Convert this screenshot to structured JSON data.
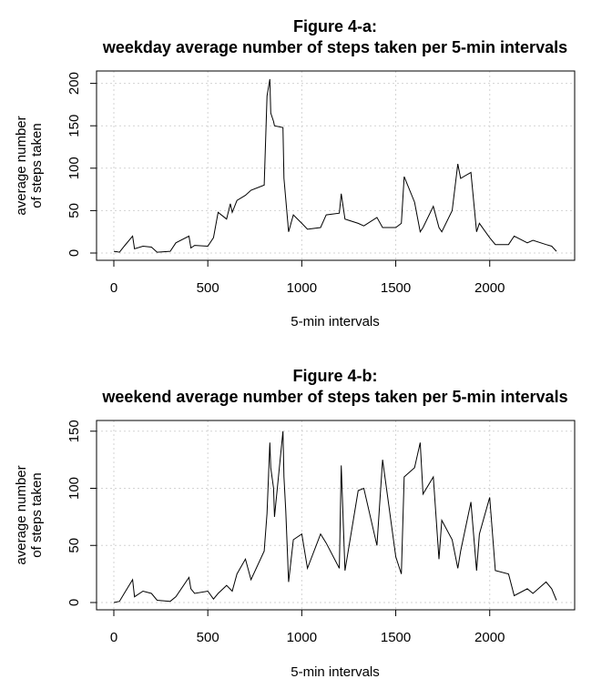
{
  "chart_data": [
    {
      "type": "line",
      "title": "Figure 4-a:",
      "subtitle": "weekday average number of steps taken per 5-min intervals",
      "xlabel": "5-min intervals",
      "ylabel": "average number\nof steps taken",
      "xlim": [
        0,
        2355
      ],
      "ylim": [
        0,
        206
      ],
      "xticks": [
        0,
        500,
        1000,
        1500,
        2000
      ],
      "yticks": [
        0,
        50,
        100,
        150,
        200
      ],
      "grid": true,
      "x": [
        0,
        30,
        55,
        100,
        110,
        155,
        200,
        230,
        300,
        330,
        400,
        410,
        430,
        500,
        530,
        555,
        600,
        620,
        630,
        655,
        700,
        730,
        800,
        815,
        830,
        835,
        850,
        855,
        900,
        905,
        930,
        955,
        1000,
        1030,
        1100,
        1130,
        1200,
        1210,
        1230,
        1300,
        1330,
        1400,
        1430,
        1500,
        1530,
        1545,
        1600,
        1630,
        1645,
        1700,
        1730,
        1745,
        1800,
        1830,
        1845,
        1900,
        1930,
        1945,
        2000,
        2030,
        2100,
        2130,
        2200,
        2230,
        2300,
        2330,
        2355
      ],
      "y": [
        2,
        1,
        8,
        20,
        5,
        8,
        7,
        1,
        2,
        12,
        20,
        6,
        9,
        8,
        18,
        48,
        40,
        58,
        48,
        62,
        68,
        74,
        80,
        185,
        205,
        165,
        155,
        150,
        148,
        88,
        25,
        45,
        35,
        28,
        30,
        45,
        47,
        70,
        40,
        35,
        32,
        42,
        30,
        30,
        35,
        90,
        60,
        25,
        30,
        55,
        30,
        25,
        50,
        105,
        88,
        95,
        25,
        35,
        18,
        10,
        10,
        20,
        12,
        15,
        10,
        8,
        2
      ]
    },
    {
      "type": "line",
      "title": "Figure 4-b:",
      "subtitle": "weekend average number of steps taken per 5-min intervals",
      "xlabel": "5-min intervals",
      "ylabel": "average number\nof steps taken",
      "xlim": [
        0,
        2355
      ],
      "ylim": [
        0,
        153
      ],
      "xticks": [
        0,
        500,
        1000,
        1500,
        2000
      ],
      "yticks": [
        0,
        50,
        100,
        150
      ],
      "grid": true,
      "x": [
        0,
        30,
        55,
        100,
        110,
        155,
        200,
        230,
        300,
        330,
        400,
        410,
        430,
        500,
        530,
        555,
        600,
        630,
        655,
        700,
        730,
        800,
        815,
        830,
        835,
        850,
        855,
        900,
        905,
        915,
        930,
        955,
        1000,
        1030,
        1100,
        1130,
        1200,
        1210,
        1230,
        1300,
        1330,
        1400,
        1430,
        1500,
        1530,
        1545,
        1600,
        1630,
        1645,
        1700,
        1730,
        1745,
        1800,
        1830,
        1845,
        1900,
        1930,
        1945,
        2000,
        2030,
        2100,
        2130,
        2200,
        2230,
        2300,
        2330,
        2355
      ],
      "y": [
        0,
        1,
        8,
        20,
        5,
        10,
        8,
        2,
        1,
        5,
        22,
        12,
        8,
        10,
        3,
        8,
        15,
        10,
        25,
        38,
        20,
        45,
        78,
        140,
        118,
        100,
        75,
        150,
        110,
        80,
        18,
        55,
        60,
        30,
        60,
        52,
        30,
        120,
        28,
        98,
        100,
        50,
        125,
        40,
        25,
        110,
        118,
        140,
        95,
        110,
        38,
        72,
        55,
        30,
        45,
        88,
        28,
        60,
        92,
        28,
        25,
        6,
        12,
        8,
        18,
        12,
        2
      ]
    }
  ]
}
